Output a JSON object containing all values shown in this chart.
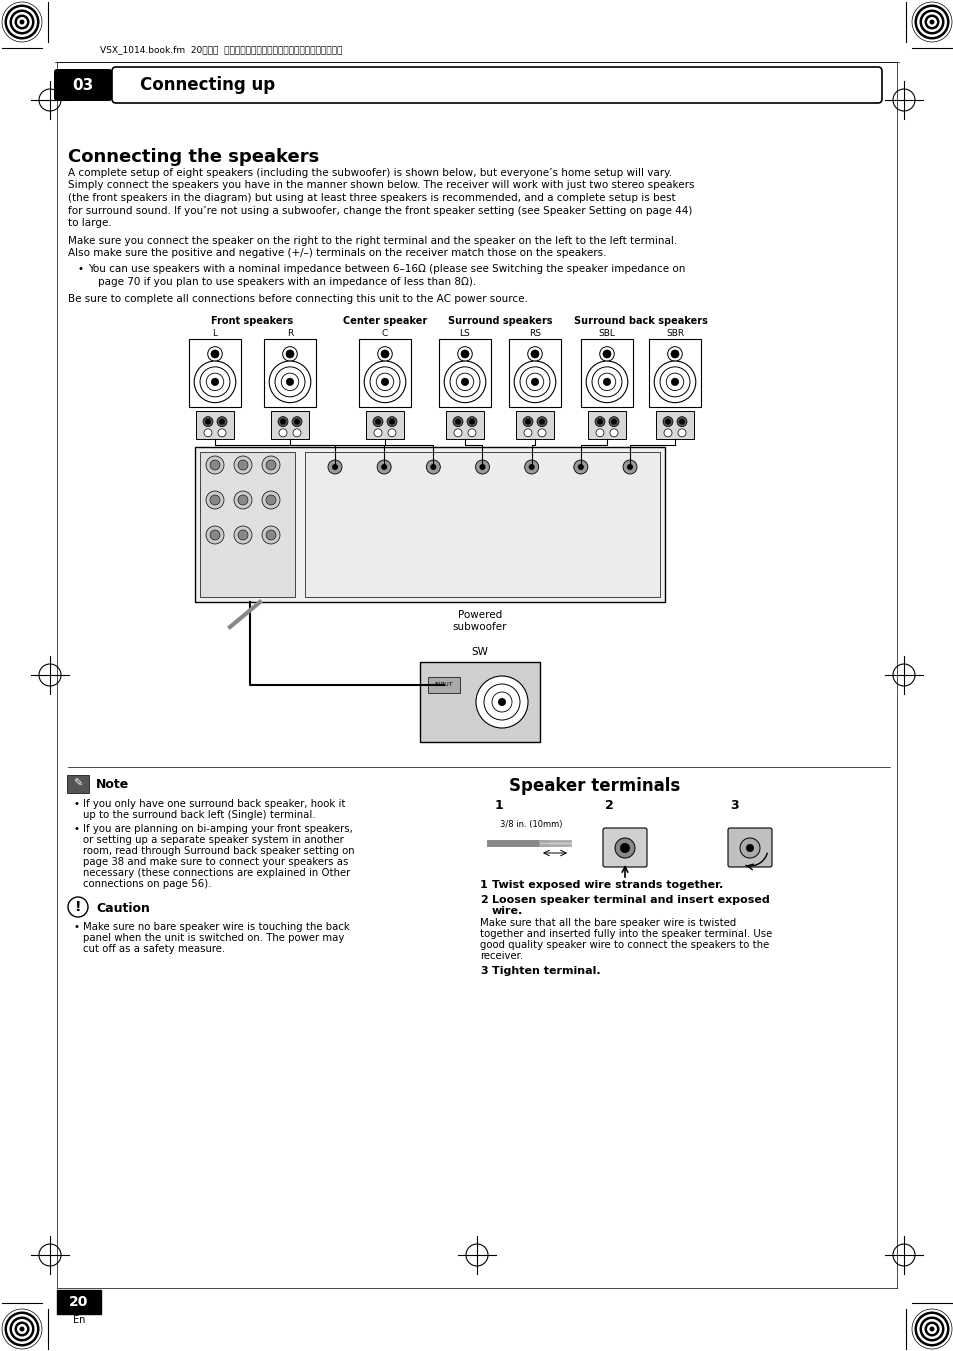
{
  "page_title": "Connecting up",
  "chapter_num": "03",
  "header_text": "VSX_1014.book.fm  20ページ  ２００４年５月１４日　金曜日　午前９時２４分",
  "section_title": "Connecting the speakers",
  "body_text_1a": "A complete setup of eight speakers (including the subwoofer) is shown below, but everyone’s home setup will vary.",
  "body_text_1b": "Simply connect the speakers you have in the manner shown below. The receiver will work with just two stereo speakers",
  "body_text_1c": "(the front speakers in the diagram) but using at least three speakers is recommended, and a complete setup is best",
  "body_text_1d": "for surround sound. If you’re not using a subwoofer, change the front speaker setting (see Speaker Setting on page 44)",
  "body_text_1e": "to large.",
  "body_text_2a": "Make sure you connect the speaker on the right to the right terminal and the speaker on the left to the left terminal.",
  "body_text_2b": "Also make sure the positive and negative (+/–) terminals on the receiver match those on the speakers.",
  "bullet_text_a": "You can use speakers with a nominal impedance between 6–16Ω (please see Switching the speaker impedance on",
  "bullet_text_b": "page 70 if you plan to use speakers with an impedance of less than 8Ω).",
  "body_text_3": "Be sure to complete all connections before connecting this unit to the AC power source.",
  "spk_group_labels": [
    "Front speakers",
    "Center speaker",
    "Surround speakers",
    "Surround back speakers"
  ],
  "spk_sub_labels": [
    "L",
    "R",
    "C",
    "LS",
    "RS",
    "SBL",
    "SBR"
  ],
  "note_title": "Note",
  "note_bullet1a": "If you only have one surround back speaker, hook it",
  "note_bullet1b": "up to the surround back left (Single) terminal.",
  "note_bullet2a": "If you are planning on bi-amping your front speakers,",
  "note_bullet2b": "or setting up a separate speaker system in another",
  "note_bullet2c": "room, read through Surround back speaker setting on",
  "note_bullet2d": "page 38 and make sure to connect your speakers as",
  "note_bullet2e": "necessary (these connections are explained in Other",
  "note_bullet2f": "connections on page 56).",
  "caution_title": "Caution",
  "caution_bullet1": "Make sure no bare speaker wire is touching the back",
  "caution_bullet2": "panel when the unit is switched on. The power may",
  "caution_bullet3": "cut off as a safety measure.",
  "right_title": "Speaker terminals",
  "step_measure": "3/8 in. (10mm)",
  "step1_label": "1",
  "step2_label": "2",
  "step3_label": "3",
  "step1_text": "Twist exposed wire strands together.",
  "step2_heading": "Loosen speaker terminal and insert exposed",
  "step2_heading2": "wire.",
  "step2_body1": "Make sure that all the bare speaker wire is twisted",
  "step2_body2": "together and inserted fully into the speaker terminal. Use",
  "step2_body3": "good quality speaker wire to connect the speakers to the",
  "step2_body4": "receiver.",
  "step3_text": "Tighten terminal.",
  "powered_subwoofer": "Powered\nsubwoofer",
  "sw_label": "SW",
  "page_num": "20",
  "page_lang": "En",
  "bg_color": "#ffffff"
}
